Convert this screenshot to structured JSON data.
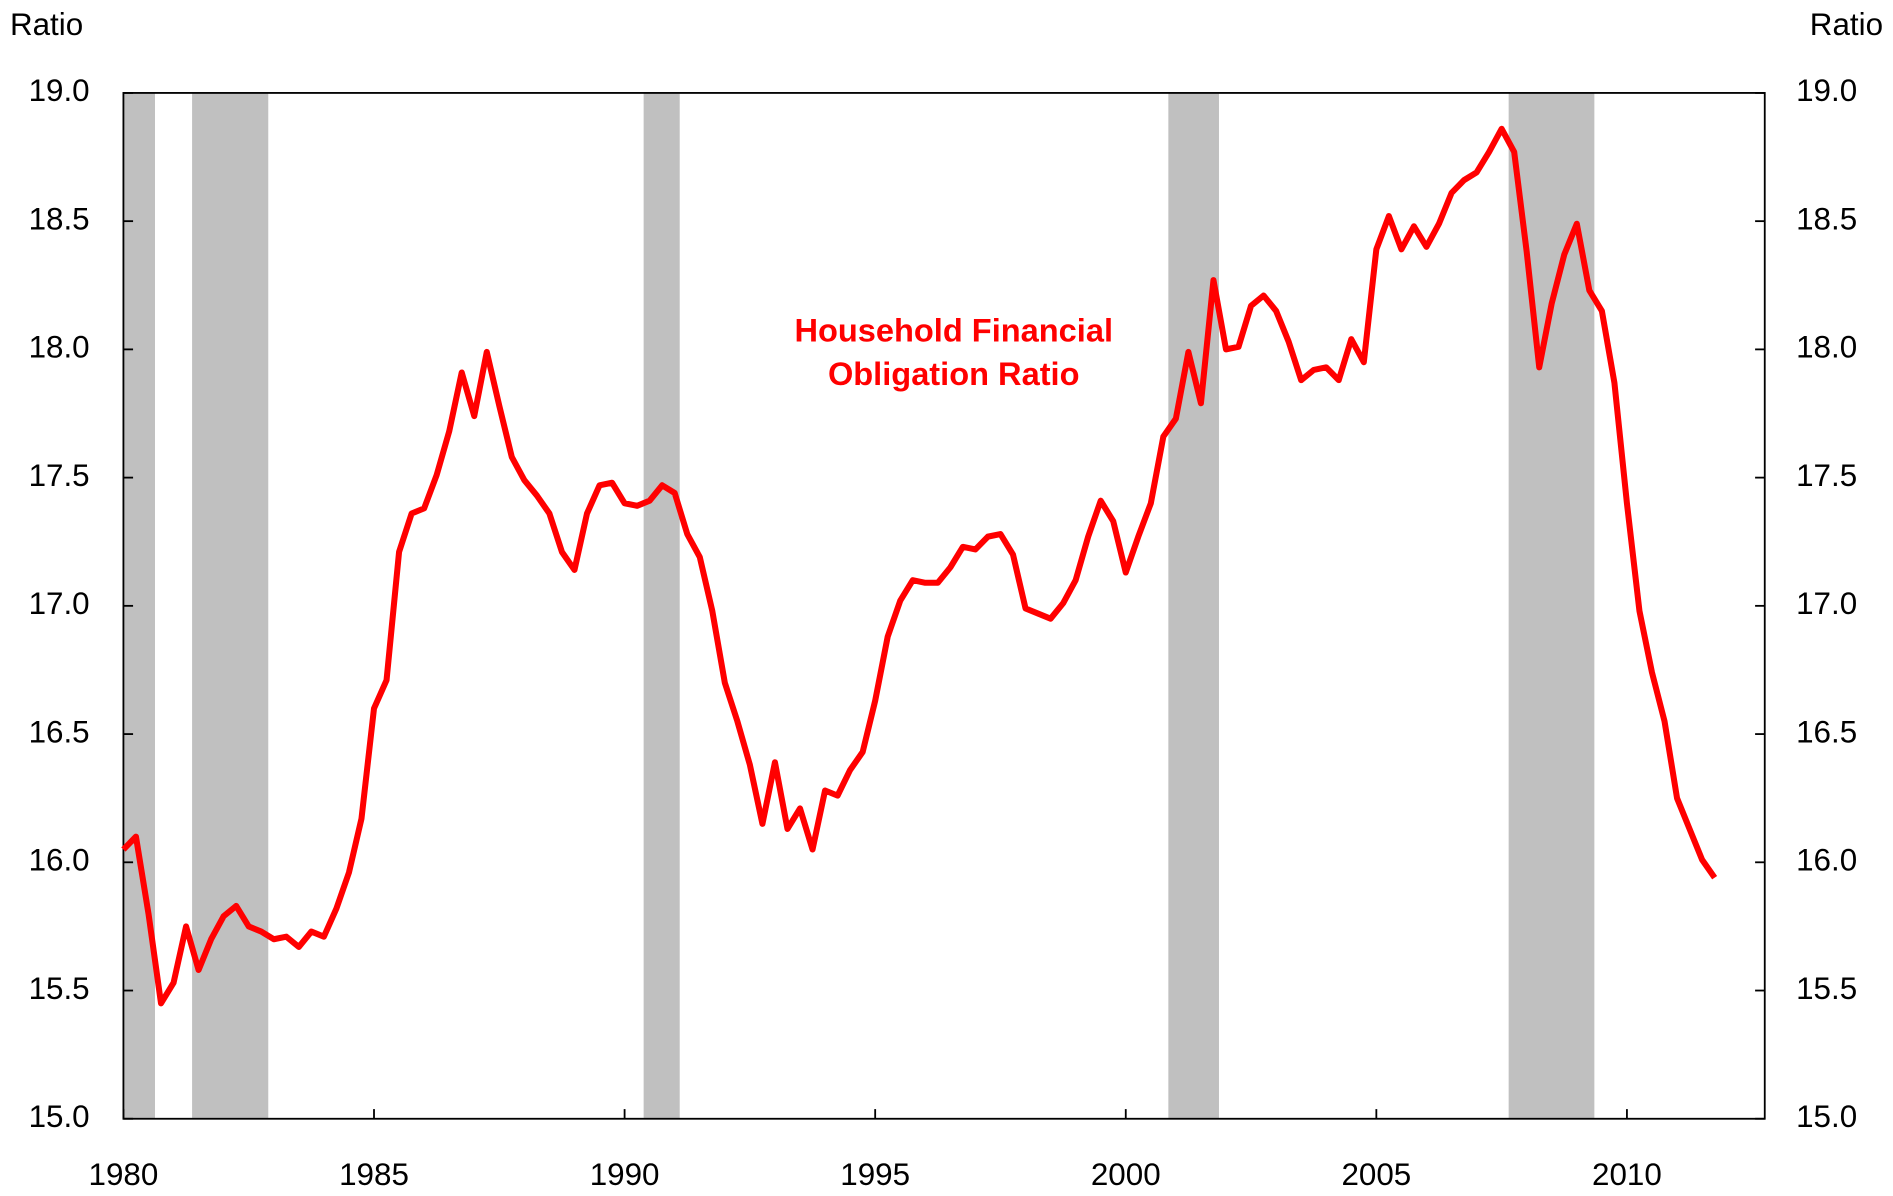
{
  "chart_data": {
    "type": "line",
    "y_axis_label": "Ratio",
    "y2_axis_label": "Ratio",
    "annotation": [
      "Household Financial",
      "Obligation Ratio"
    ],
    "annotation_color": "#ff0000",
    "xlim": [
      1980,
      2012.75
    ],
    "xticks": [
      1980,
      1985,
      1990,
      1995,
      2000,
      2005,
      2010
    ],
    "ylim": [
      15,
      19
    ],
    "yticks": [
      {
        "value": 15,
        "label": "15.0"
      },
      {
        "value": 15.5,
        "label": "15.5"
      },
      {
        "value": 16,
        "label": "16.0"
      },
      {
        "value": 16.5,
        "label": "16.5"
      },
      {
        "value": 17,
        "label": "17.0"
      },
      {
        "value": 17.5,
        "label": "17.5"
      },
      {
        "value": 18,
        "label": "18.0"
      },
      {
        "value": 18.5,
        "label": "18.5"
      },
      {
        "value": 19,
        "label": "19.0"
      }
    ],
    "y2lim": [
      15,
      19
    ],
    "y2ticks": [
      {
        "value": 15,
        "label": "15.0"
      },
      {
        "value": 15.5,
        "label": "15.5"
      },
      {
        "value": 16,
        "label": "16.0"
      },
      {
        "value": 16.5,
        "label": "16.5"
      },
      {
        "value": 17,
        "label": "17.0"
      },
      {
        "value": 17.5,
        "label": "17.5"
      },
      {
        "value": 18,
        "label": "18.0"
      },
      {
        "value": 18.5,
        "label": "18.5"
      },
      {
        "value": 19,
        "label": "19.0"
      }
    ],
    "grid": false,
    "shaded_periods": [
      [
        1980,
        1980.63
      ],
      [
        1981.37,
        1982.89
      ],
      [
        1990.38,
        1991.1
      ],
      [
        2000.85,
        2001.86
      ],
      [
        2007.64,
        2009.35
      ]
    ],
    "shade_color": "#c0c0c0",
    "x": [
      1980,
      1980.25,
      1980.5,
      1980.75,
      1981,
      1981.25,
      1981.5,
      1981.75,
      1982,
      1982.25,
      1982.5,
      1982.75,
      1983,
      1983.25,
      1983.5,
      1983.75,
      1984,
      1984.25,
      1984.5,
      1984.75,
      1985,
      1985.25,
      1985.5,
      1985.75,
      1986,
      1986.25,
      1986.5,
      1986.75,
      1987,
      1987.25,
      1987.5,
      1987.75,
      1988,
      1988.25,
      1988.5,
      1988.75,
      1989,
      1989.25,
      1989.5,
      1989.75,
      1990,
      1990.25,
      1990.5,
      1990.75,
      1991,
      1991.25,
      1991.5,
      1991.75,
      1992,
      1992.25,
      1992.5,
      1992.75,
      1993,
      1993.25,
      1993.5,
      1993.75,
      1994,
      1994.25,
      1994.5,
      1994.75,
      1995,
      1995.25,
      1995.5,
      1995.75,
      1996,
      1996.25,
      1996.5,
      1996.75,
      1997,
      1997.25,
      1997.5,
      1997.75,
      1998,
      1998.25,
      1998.5,
      1998.75,
      1999,
      1999.25,
      1999.5,
      1999.75,
      2000,
      2000.25,
      2000.5,
      2000.75,
      2001,
      2001.25,
      2001.5,
      2001.75,
      2002,
      2002.25,
      2002.5,
      2002.75,
      2003,
      2003.25,
      2003.5,
      2003.75,
      2004,
      2004.25,
      2004.5,
      2004.75,
      2005,
      2005.25,
      2005.5,
      2005.75,
      2006,
      2006.25,
      2006.5,
      2006.75,
      2007,
      2007.25,
      2007.5,
      2007.75,
      2008,
      2008.25,
      2008.5,
      2008.75,
      2009,
      2009.25,
      2009.5,
      2009.75,
      2010,
      2010.25,
      2010.5,
      2010.75,
      2011,
      2011.25,
      2011.5,
      2011.75
    ],
    "series": [
      {
        "color": "#ff0000",
        "values": [
          16.05,
          16.1,
          15.8,
          15.45,
          15.53,
          15.75,
          15.58,
          15.7,
          15.79,
          15.83,
          15.75,
          15.73,
          15.7,
          15.71,
          15.67,
          15.73,
          15.71,
          15.82,
          15.96,
          16.17,
          16.6,
          16.71,
          17.21,
          17.36,
          17.38,
          17.51,
          17.68,
          17.91,
          17.74,
          17.99,
          17.78,
          17.58,
          17.49,
          17.43,
          17.36,
          17.21,
          17.14,
          17.36,
          17.47,
          17.48,
          17.4,
          17.39,
          17.41,
          17.47,
          17.44,
          17.28,
          17.19,
          16.98,
          16.7,
          16.55,
          16.38,
          16.15,
          16.39,
          16.13,
          16.21,
          16.05,
          16.28,
          16.26,
          16.36,
          16.43,
          16.63,
          16.88,
          17.02,
          17.1,
          17.09,
          17.09,
          17.15,
          17.23,
          17.22,
          17.27,
          17.28,
          17.2,
          16.99,
          16.97,
          16.95,
          17.01,
          17.1,
          17.27,
          17.41,
          17.33,
          17.13,
          17.27,
          17.4,
          17.66,
          17.73,
          17.99,
          17.79,
          18.27,
          18.0,
          18.01,
          18.17,
          18.21,
          18.15,
          18.03,
          17.88,
          17.92,
          17.93,
          17.88,
          18.04,
          17.95,
          18.39,
          18.52,
          18.39,
          18.48,
          18.4,
          18.49,
          18.61,
          18.66,
          18.69,
          18.77,
          18.86,
          18.77,
          18.38,
          17.93,
          18.18,
          18.37,
          18.49,
          18.23,
          18.15,
          17.87,
          17.4,
          16.98,
          16.74,
          16.55,
          16.25,
          16.13,
          16.01,
          15.94
        ]
      }
    ]
  }
}
